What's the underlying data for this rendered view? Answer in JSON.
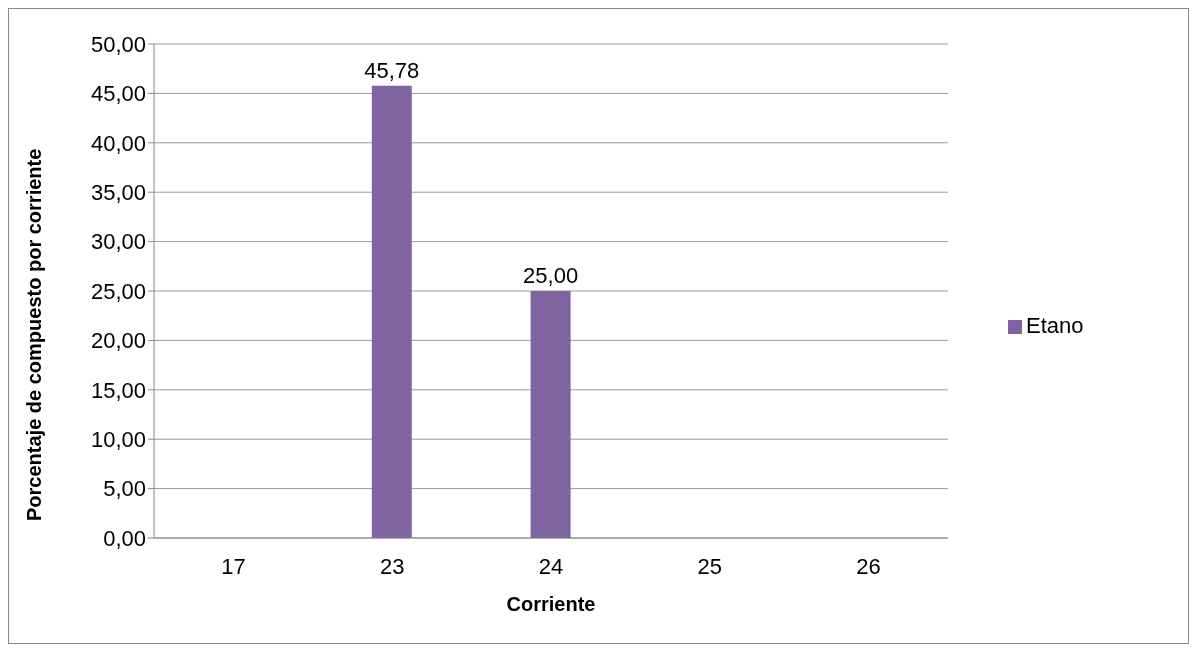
{
  "chart_data": {
    "type": "bar",
    "xlabel": "Corriente",
    "ylabel": "Porcentaje de compuesto por corriente",
    "categories": [
      "17",
      "23",
      "24",
      "25",
      "26"
    ],
    "series": [
      {
        "name": "Etano",
        "color": "#8064a2",
        "values": [
          0,
          45.78,
          25,
          0,
          0
        ],
        "value_labels": [
          null,
          "45,78",
          "25,00",
          null,
          null
        ]
      }
    ],
    "ylim": [
      0,
      50
    ],
    "yticks": [
      {
        "value": 0,
        "label": "0,00"
      },
      {
        "value": 5,
        "label": "5,00"
      },
      {
        "value": 10,
        "label": "10,00"
      },
      {
        "value": 15,
        "label": "15,00"
      },
      {
        "value": 20,
        "label": "20,00"
      },
      {
        "value": 25,
        "label": "25,00"
      },
      {
        "value": 30,
        "label": "30,00"
      },
      {
        "value": 35,
        "label": "35,00"
      },
      {
        "value": 40,
        "label": "40,00"
      },
      {
        "value": 45,
        "label": "45,00"
      },
      {
        "value": 50,
        "label": "50,00"
      }
    ],
    "grid": "y",
    "legend": "right"
  }
}
